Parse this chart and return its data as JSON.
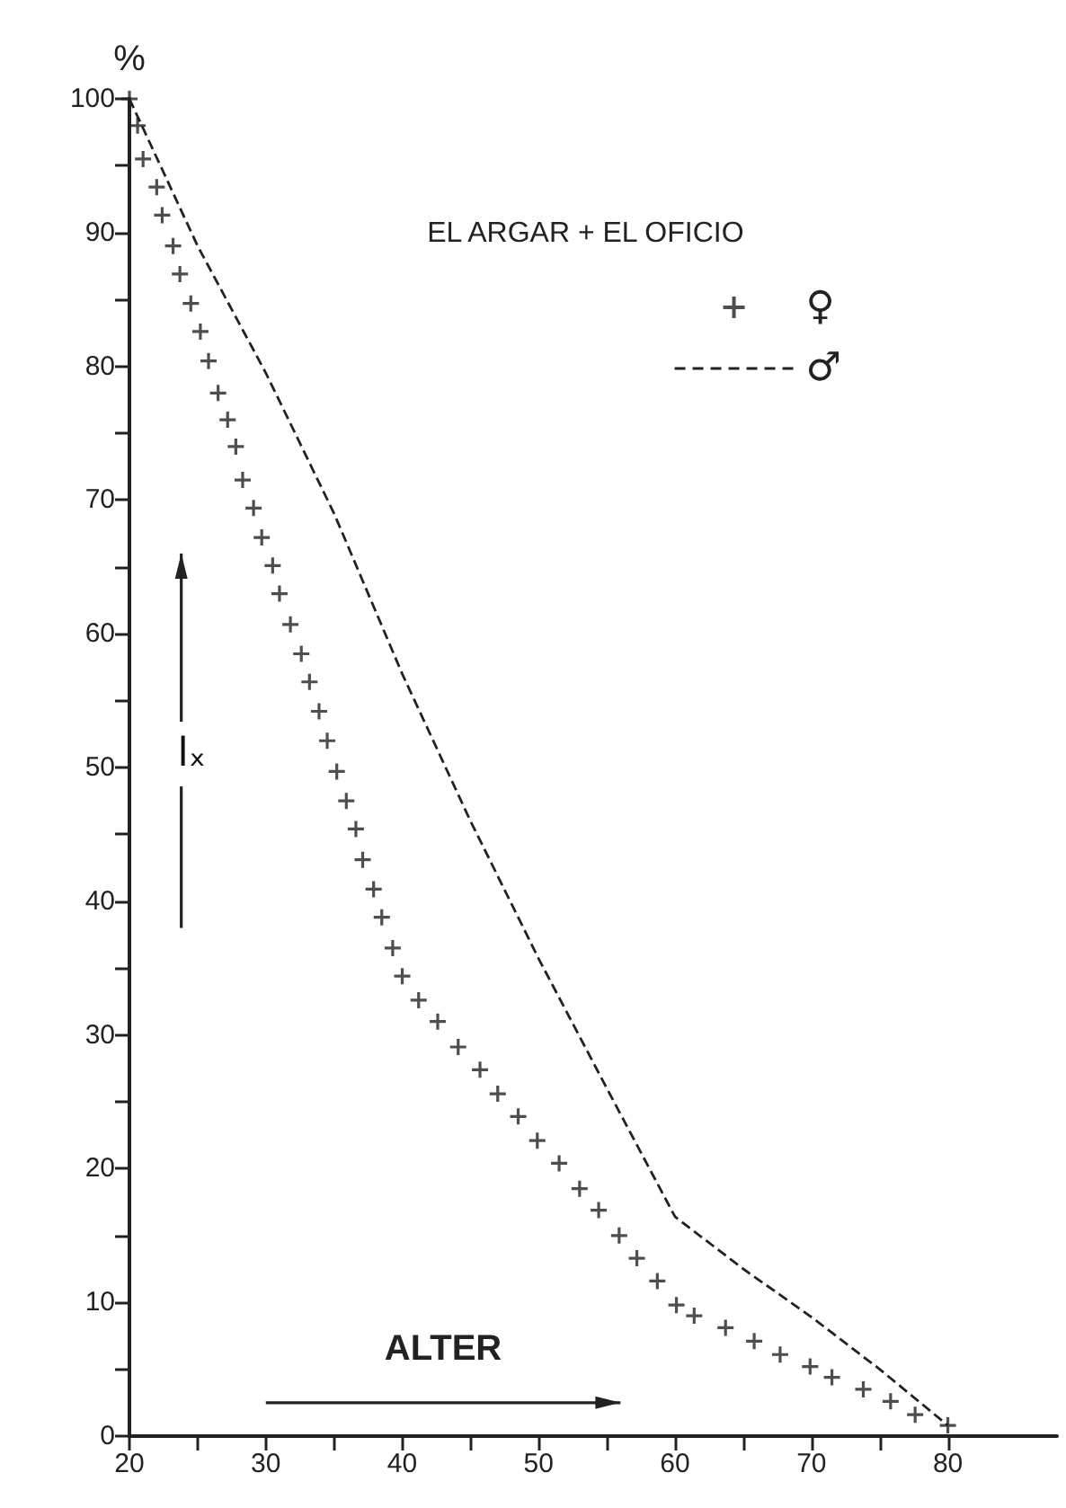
{
  "chart_data": {
    "type": "line",
    "xlabel": "ALTER",
    "ylabel": "%",
    "legend_title": "EL ARGAR + EL OFICIO",
    "annotations": [
      "lₓ"
    ],
    "xlim": [
      20,
      88
    ],
    "ylim": [
      0,
      100
    ],
    "xticks": [
      20,
      {
        "value": 25,
        "label": null
      },
      30,
      {
        "value": 35,
        "label": null
      },
      40,
      {
        "value": 45,
        "label": null
      },
      50,
      {
        "value": 55,
        "label": null
      },
      60,
      {
        "value": 65,
        "label": null
      },
      70,
      {
        "value": 75,
        "label": null
      },
      80
    ],
    "yticks": [
      0,
      {
        "value": 5,
        "label": null
      },
      10,
      {
        "value": 15,
        "label": null
      },
      20,
      {
        "value": 25,
        "label": null
      },
      30,
      {
        "value": 35,
        "label": null
      },
      40,
      {
        "value": 45,
        "label": null
      },
      50,
      {
        "value": 55,
        "label": null
      },
      60,
      {
        "value": 65,
        "label": null
      },
      70,
      {
        "value": 75,
        "label": null
      },
      80,
      {
        "value": 85,
        "label": null
      },
      90,
      {
        "value": 95,
        "label": null
      },
      100
    ],
    "grid": false,
    "legend": "top right",
    "series": [
      {
        "name": "♀",
        "type": "scatter",
        "marker": "cross",
        "color": "#222222",
        "x": [
          20,
          20.6,
          21,
          22,
          22.4,
          23.2,
          23.7,
          24.5,
          25.2,
          25.8,
          26.5,
          27.2,
          27.8,
          28.3,
          29.1,
          29.7,
          30.5,
          31,
          31.8,
          32.6,
          33.2,
          33.9,
          34.5,
          35.2,
          35.9,
          36.6,
          37.1,
          37.9,
          38.5,
          39.3,
          40,
          41.2,
          42.6,
          44.1,
          45.7,
          47,
          48.5,
          49.9,
          51.5,
          53,
          54.4,
          55.9,
          57.2,
          58.7,
          60.1,
          61.4,
          63.7,
          65.8,
          67.7,
          69.9,
          71.5,
          73.8,
          75.8,
          77.6,
          80
        ],
        "values": [
          100,
          98,
          95.5,
          93.4,
          91.3,
          89,
          86.9,
          84.7,
          82.6,
          80.4,
          78,
          76,
          74,
          71.5,
          69.4,
          67.2,
          65.1,
          63,
          60.7,
          58.5,
          56.4,
          54.2,
          52,
          49.7,
          47.5,
          45.4,
          43.1,
          40.9,
          38.8,
          36.5,
          34.4,
          32.6,
          31,
          29.1,
          27.4,
          25.6,
          23.9,
          22.1,
          20.4,
          18.5,
          16.9,
          15,
          13.3,
          11.6,
          9.8,
          9,
          8.1,
          7.1,
          6.1,
          5.2,
          4.4,
          3.5,
          2.6,
          1.6,
          0.8
        ]
      },
      {
        "name": "♂",
        "marker": "none",
        "line_style": "dashed",
        "color": "#222222",
        "x": [
          20,
          25,
          30,
          35,
          40,
          45,
          50,
          55,
          60,
          65,
          70,
          75,
          80
        ],
        "values": [
          100,
          89,
          79.5,
          69,
          57,
          46,
          35.7,
          26,
          16.4,
          12.5,
          8.9,
          5,
          0.8
        ]
      }
    ]
  }
}
